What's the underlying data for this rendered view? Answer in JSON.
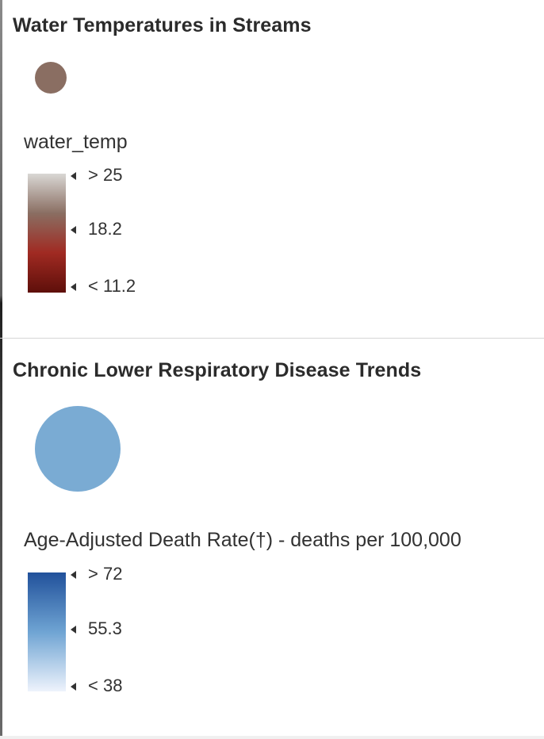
{
  "legend": [
    {
      "title": "Water Temperatures in Streams",
      "symbol_color": "#8a6e62",
      "field": "water_temp",
      "ramp": {
        "colors": [
          "#d9d7d4",
          "#8a6e62",
          "#a02a22",
          "#5e0f0a"
        ],
        "labels": [
          "> 25",
          "18.2",
          "< 11.2"
        ]
      }
    },
    {
      "title": "Chronic Lower Respiratory Disease Trends",
      "symbol_color": "#7aabd3",
      "field": "Age-Adjusted Death Rate(†) - deaths per 100,000",
      "ramp": {
        "colors": [
          "#21519b",
          "#6fa4d3",
          "#eef3fc"
        ],
        "labels": [
          "> 72",
          "55.3",
          "< 38"
        ]
      }
    }
  ]
}
